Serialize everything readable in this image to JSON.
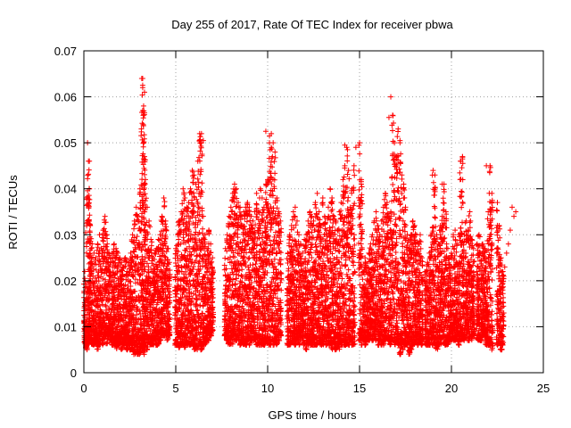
{
  "chart_data": {
    "type": "scatter",
    "title": "Day 255 of 2017, Rate Of TEC Index for receiver pbwa",
    "xlabel": "GPS time / hours",
    "ylabel": "ROTI / TECUs",
    "xlim": [
      0,
      25
    ],
    "ylim": [
      0,
      0.07
    ],
    "x_ticks": [
      0,
      5,
      10,
      15,
      20,
      25
    ],
    "y_ticks": [
      0,
      0.01,
      0.02,
      0.03,
      0.04,
      0.05,
      0.06,
      0.07
    ],
    "x_tick_labels": [
      "0",
      "5",
      "10",
      "15",
      "20",
      "25"
    ],
    "y_tick_labels": [
      "0",
      "0.01",
      "0.02",
      "0.03",
      "0.04",
      "0.05",
      "0.06",
      "0.07"
    ],
    "grid": true,
    "legend": "none",
    "marker": "plus",
    "color": "#ff0000",
    "series": [
      {
        "x": [
          0.05,
          0.15,
          0.25,
          0.3,
          0.35,
          0.45,
          0.55,
          0.65,
          0.75,
          0.85,
          0.95,
          1.05,
          1.15,
          1.25,
          1.35,
          1.45,
          1.55,
          1.65,
          1.75,
          1.85,
          1.95,
          2.05,
          2.15,
          2.25,
          2.35,
          2.45,
          2.55,
          2.65,
          2.75,
          2.85,
          2.95,
          3.05,
          3.15,
          3.2,
          3.25,
          3.3,
          3.35,
          3.45,
          3.55,
          3.65,
          3.75,
          3.85,
          3.95,
          4.05,
          4.15,
          4.25,
          4.35,
          4.45,
          4.55,
          4.65,
          5.0,
          5.1,
          5.2,
          5.3,
          5.4,
          5.5,
          5.6,
          5.7,
          5.8,
          5.9,
          6.0,
          6.1,
          6.2,
          6.3,
          6.4,
          6.5,
          6.6,
          6.7,
          6.8,
          6.9,
          7.0,
          7.7,
          7.8,
          7.9,
          8.0,
          8.1,
          8.2,
          8.3,
          8.4,
          8.5,
          8.6,
          8.7,
          8.8,
          8.9,
          9.0,
          9.1,
          9.2,
          9.3,
          9.4,
          9.5,
          9.6,
          9.7,
          9.8,
          9.9,
          10.0,
          10.1,
          10.2,
          10.3,
          10.4,
          10.5,
          10.6,
          10.7,
          11.1,
          11.2,
          11.3,
          11.4,
          11.5,
          11.6,
          11.7,
          11.8,
          11.9,
          12.0,
          12.1,
          12.2,
          12.3,
          12.4,
          12.5,
          12.6,
          12.7,
          12.8,
          12.9,
          13.0,
          13.1,
          13.2,
          13.3,
          13.4,
          13.5,
          13.6,
          13.7,
          13.8,
          13.9,
          14.0,
          14.1,
          14.2,
          14.3,
          14.4,
          14.5,
          14.6,
          14.7,
          15.0,
          15.1,
          15.2,
          15.3,
          15.4,
          15.5,
          15.6,
          15.7,
          15.8,
          15.9,
          16.0,
          16.1,
          16.2,
          16.3,
          16.4,
          16.5,
          16.6,
          16.7,
          16.8,
          16.9,
          17.0,
          17.1,
          17.2,
          17.3,
          17.4,
          17.5,
          17.6,
          17.7,
          17.8,
          17.9,
          18.0,
          18.1,
          18.2,
          18.3,
          18.4,
          18.6,
          18.7,
          18.8,
          18.9,
          19.0,
          19.1,
          19.2,
          19.3,
          19.4,
          19.5,
          19.6,
          19.7,
          19.8,
          19.9,
          20.0,
          20.1,
          20.2,
          20.3,
          20.4,
          20.5,
          20.6,
          20.7,
          20.8,
          20.9,
          21.0,
          21.1,
          21.2,
          21.4,
          21.5,
          21.6,
          21.7,
          21.8,
          21.9,
          22.0,
          22.1,
          22.2,
          22.5,
          22.6,
          22.7,
          22.8,
          22.9,
          23.0,
          23.1,
          23.2,
          23.3,
          23.4,
          23.5
        ],
        "y_min": [
          0.006,
          0.005,
          0.006,
          0.008,
          0.007,
          0.006,
          0.006,
          0.007,
          0.005,
          0.006,
          0.007,
          0.006,
          0.007,
          0.006,
          0.008,
          0.007,
          0.006,
          0.007,
          0.005,
          0.006,
          0.006,
          0.005,
          0.006,
          0.007,
          0.005,
          0.006,
          0.005,
          0.005,
          0.004,
          0.005,
          0.004,
          0.004,
          0.005,
          0.005,
          0.004,
          0.005,
          0.005,
          0.005,
          0.006,
          0.006,
          0.006,
          0.007,
          0.006,
          0.006,
          0.007,
          0.008,
          0.008,
          0.008,
          0.007,
          0.008,
          0.006,
          0.006,
          0.005,
          0.006,
          0.006,
          0.005,
          0.006,
          0.006,
          0.006,
          0.006,
          0.005,
          0.005,
          0.005,
          0.006,
          0.005,
          0.006,
          0.006,
          0.007,
          0.007,
          0.008,
          0.009,
          0.008,
          0.007,
          0.006,
          0.006,
          0.006,
          0.007,
          0.007,
          0.007,
          0.006,
          0.006,
          0.006,
          0.006,
          0.007,
          0.006,
          0.007,
          0.007,
          0.007,
          0.006,
          0.006,
          0.006,
          0.006,
          0.006,
          0.006,
          0.006,
          0.006,
          0.006,
          0.006,
          0.007,
          0.006,
          0.007,
          0.008,
          0.006,
          0.006,
          0.006,
          0.007,
          0.006,
          0.007,
          0.006,
          0.007,
          0.007,
          0.006,
          0.005,
          0.006,
          0.006,
          0.006,
          0.006,
          0.006,
          0.006,
          0.007,
          0.006,
          0.006,
          0.006,
          0.006,
          0.006,
          0.006,
          0.005,
          0.006,
          0.005,
          0.006,
          0.005,
          0.006,
          0.006,
          0.006,
          0.006,
          0.006,
          0.007,
          0.006,
          0.006,
          0.007,
          0.006,
          0.007,
          0.006,
          0.007,
          0.007,
          0.008,
          0.007,
          0.008,
          0.007,
          0.006,
          0.007,
          0.006,
          0.006,
          0.007,
          0.007,
          0.007,
          0.006,
          0.007,
          0.006,
          0.007,
          0.006,
          0.004,
          0.006,
          0.005,
          0.006,
          0.006,
          0.004,
          0.005,
          0.006,
          0.006,
          0.007,
          0.006,
          0.007,
          0.006,
          0.006,
          0.006,
          0.006,
          0.007,
          0.006,
          0.006,
          0.005,
          0.006,
          0.006,
          0.007,
          0.006,
          0.006,
          0.006,
          0.007,
          0.007,
          0.007,
          0.007,
          0.007,
          0.006,
          0.007,
          0.007,
          0.007,
          0.007,
          0.007,
          0.007,
          0.007,
          0.008,
          0.007,
          0.007,
          0.007,
          0.008,
          0.008,
          0.006,
          0.006,
          0.006,
          0.005,
          0.006,
          0.006,
          0.005,
          0.006
        ],
        "y_max": [
          0.022,
          0.038,
          0.046,
          0.04,
          0.032,
          0.028,
          0.026,
          0.025,
          0.028,
          0.03,
          0.027,
          0.031,
          0.034,
          0.03,
          0.026,
          0.025,
          0.026,
          0.028,
          0.027,
          0.026,
          0.025,
          0.024,
          0.023,
          0.025,
          0.022,
          0.024,
          0.026,
          0.03,
          0.033,
          0.036,
          0.034,
          0.04,
          0.064,
          0.062,
          0.058,
          0.047,
          0.042,
          0.036,
          0.033,
          0.029,
          0.025,
          0.026,
          0.027,
          0.029,
          0.03,
          0.034,
          0.038,
          0.033,
          0.027,
          0.024,
          0.027,
          0.03,
          0.033,
          0.035,
          0.04,
          0.038,
          0.036,
          0.037,
          0.04,
          0.044,
          0.043,
          0.041,
          0.046,
          0.052,
          0.05,
          0.034,
          0.03,
          0.027,
          0.031,
          0.028,
          0.025,
          0.027,
          0.03,
          0.034,
          0.036,
          0.039,
          0.041,
          0.04,
          0.037,
          0.036,
          0.034,
          0.035,
          0.036,
          0.037,
          0.036,
          0.034,
          0.033,
          0.035,
          0.039,
          0.035,
          0.04,
          0.038,
          0.036,
          0.041,
          0.042,
          0.05,
          0.052,
          0.05,
          0.048,
          0.038,
          0.035,
          0.033,
          0.026,
          0.03,
          0.032,
          0.035,
          0.036,
          0.033,
          0.03,
          0.028,
          0.026,
          0.029,
          0.03,
          0.033,
          0.035,
          0.034,
          0.033,
          0.037,
          0.039,
          0.035,
          0.032,
          0.038,
          0.034,
          0.031,
          0.036,
          0.04,
          0.038,
          0.034,
          0.033,
          0.031,
          0.035,
          0.037,
          0.042,
          0.045,
          0.049,
          0.044,
          0.036,
          0.04,
          0.045,
          0.05,
          0.042,
          0.022,
          0.025,
          0.023,
          0.026,
          0.028,
          0.03,
          0.033,
          0.035,
          0.032,
          0.03,
          0.033,
          0.036,
          0.039,
          0.037,
          0.034,
          0.035,
          0.056,
          0.05,
          0.047,
          0.053,
          0.05,
          0.043,
          0.041,
          0.036,
          0.03,
          0.027,
          0.03,
          0.033,
          0.032,
          0.03,
          0.028,
          0.03,
          0.025,
          0.022,
          0.024,
          0.026,
          0.03,
          0.044,
          0.043,
          0.03,
          0.028,
          0.032,
          0.034,
          0.041,
          0.035,
          0.027,
          0.025,
          0.026,
          0.03,
          0.031,
          0.028,
          0.03,
          0.046,
          0.047,
          0.03,
          0.033,
          0.031,
          0.035,
          0.029,
          0.027,
          0.028,
          0.03,
          0.026,
          0.028,
          0.027,
          0.024,
          0.035,
          0.045,
          0.039,
          0.037,
          0.032,
          0.025,
          0.022,
          0.023,
          0.026,
          0.028,
          0.031,
          0.036,
          0.034,
          0.035
        ],
        "sparse_high_points": [
          [
            0.2,
            0.05
          ],
          [
            0.3,
            0.046
          ],
          [
            3.2,
            0.064
          ],
          [
            3.2,
            0.0625
          ],
          [
            3.3,
            0.061
          ],
          [
            3.2,
            0.057
          ],
          [
            3.3,
            0.0565
          ],
          [
            6.4,
            0.052
          ],
          [
            6.5,
            0.0505
          ],
          [
            9.9,
            0.0525
          ],
          [
            10.1,
            0.0515
          ],
          [
            10.2,
            0.049
          ],
          [
            14.2,
            0.0495
          ],
          [
            14.8,
            0.049
          ],
          [
            16.7,
            0.06
          ],
          [
            16.6,
            0.0555
          ],
          [
            17.2,
            0.0505
          ],
          [
            19.5,
            0.041
          ],
          [
            20.6,
            0.0465
          ],
          [
            20.5,
            0.046
          ],
          [
            21.9,
            0.045
          ]
        ]
      }
    ]
  }
}
